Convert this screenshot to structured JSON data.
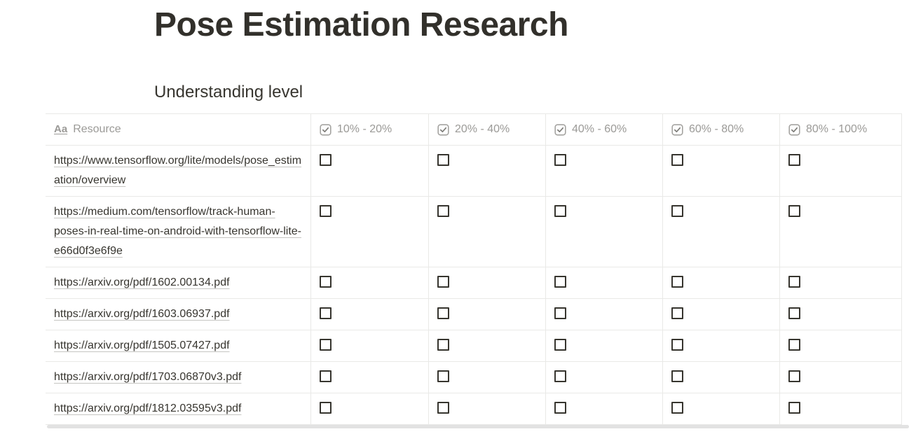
{
  "page": {
    "title": "Pose Estimation Research",
    "section_title": "Understanding level"
  },
  "table": {
    "resource_column": {
      "icon_text": "Aa",
      "label": "Resource"
    },
    "checkbox_columns": [
      {
        "label": "10% - 20%"
      },
      {
        "label": "20% - 40%"
      },
      {
        "label": "40% - 60%"
      },
      {
        "label": "60% - 80%"
      },
      {
        "label": "80% - 100%"
      }
    ],
    "rows": [
      {
        "resource": "https://www.tensorflow.org/lite/models/pose_estimation/overview",
        "checks": [
          false,
          false,
          false,
          false,
          false
        ]
      },
      {
        "resource": "https://medium.com/tensorflow/track-human-poses-in-real-time-on-android-with-tensorflow-lite-e66d0f3e6f9e",
        "checks": [
          false,
          false,
          false,
          false,
          false
        ]
      },
      {
        "resource": "https://arxiv.org/pdf/1602.00134.pdf",
        "checks": [
          false,
          false,
          false,
          false,
          false
        ]
      },
      {
        "resource": "https://arxiv.org/pdf/1603.06937.pdf",
        "checks": [
          false,
          false,
          false,
          false,
          false
        ]
      },
      {
        "resource": "https://arxiv.org/pdf/1505.07427.pdf",
        "checks": [
          false,
          false,
          false,
          false,
          false
        ]
      },
      {
        "resource": "https://arxiv.org/pdf/1703.06870v3.pdf",
        "checks": [
          false,
          false,
          false,
          false,
          false
        ]
      },
      {
        "resource": "https://arxiv.org/pdf/1812.03595v3.pdf",
        "checks": [
          false,
          false,
          false,
          false,
          false
        ]
      }
    ]
  },
  "colors": {
    "text": "#37352f",
    "muted_text": "#9b9a97",
    "border": "#e9e9e7",
    "checkbox_border": "#37352f",
    "scrollbar": "#e2e2e2"
  }
}
